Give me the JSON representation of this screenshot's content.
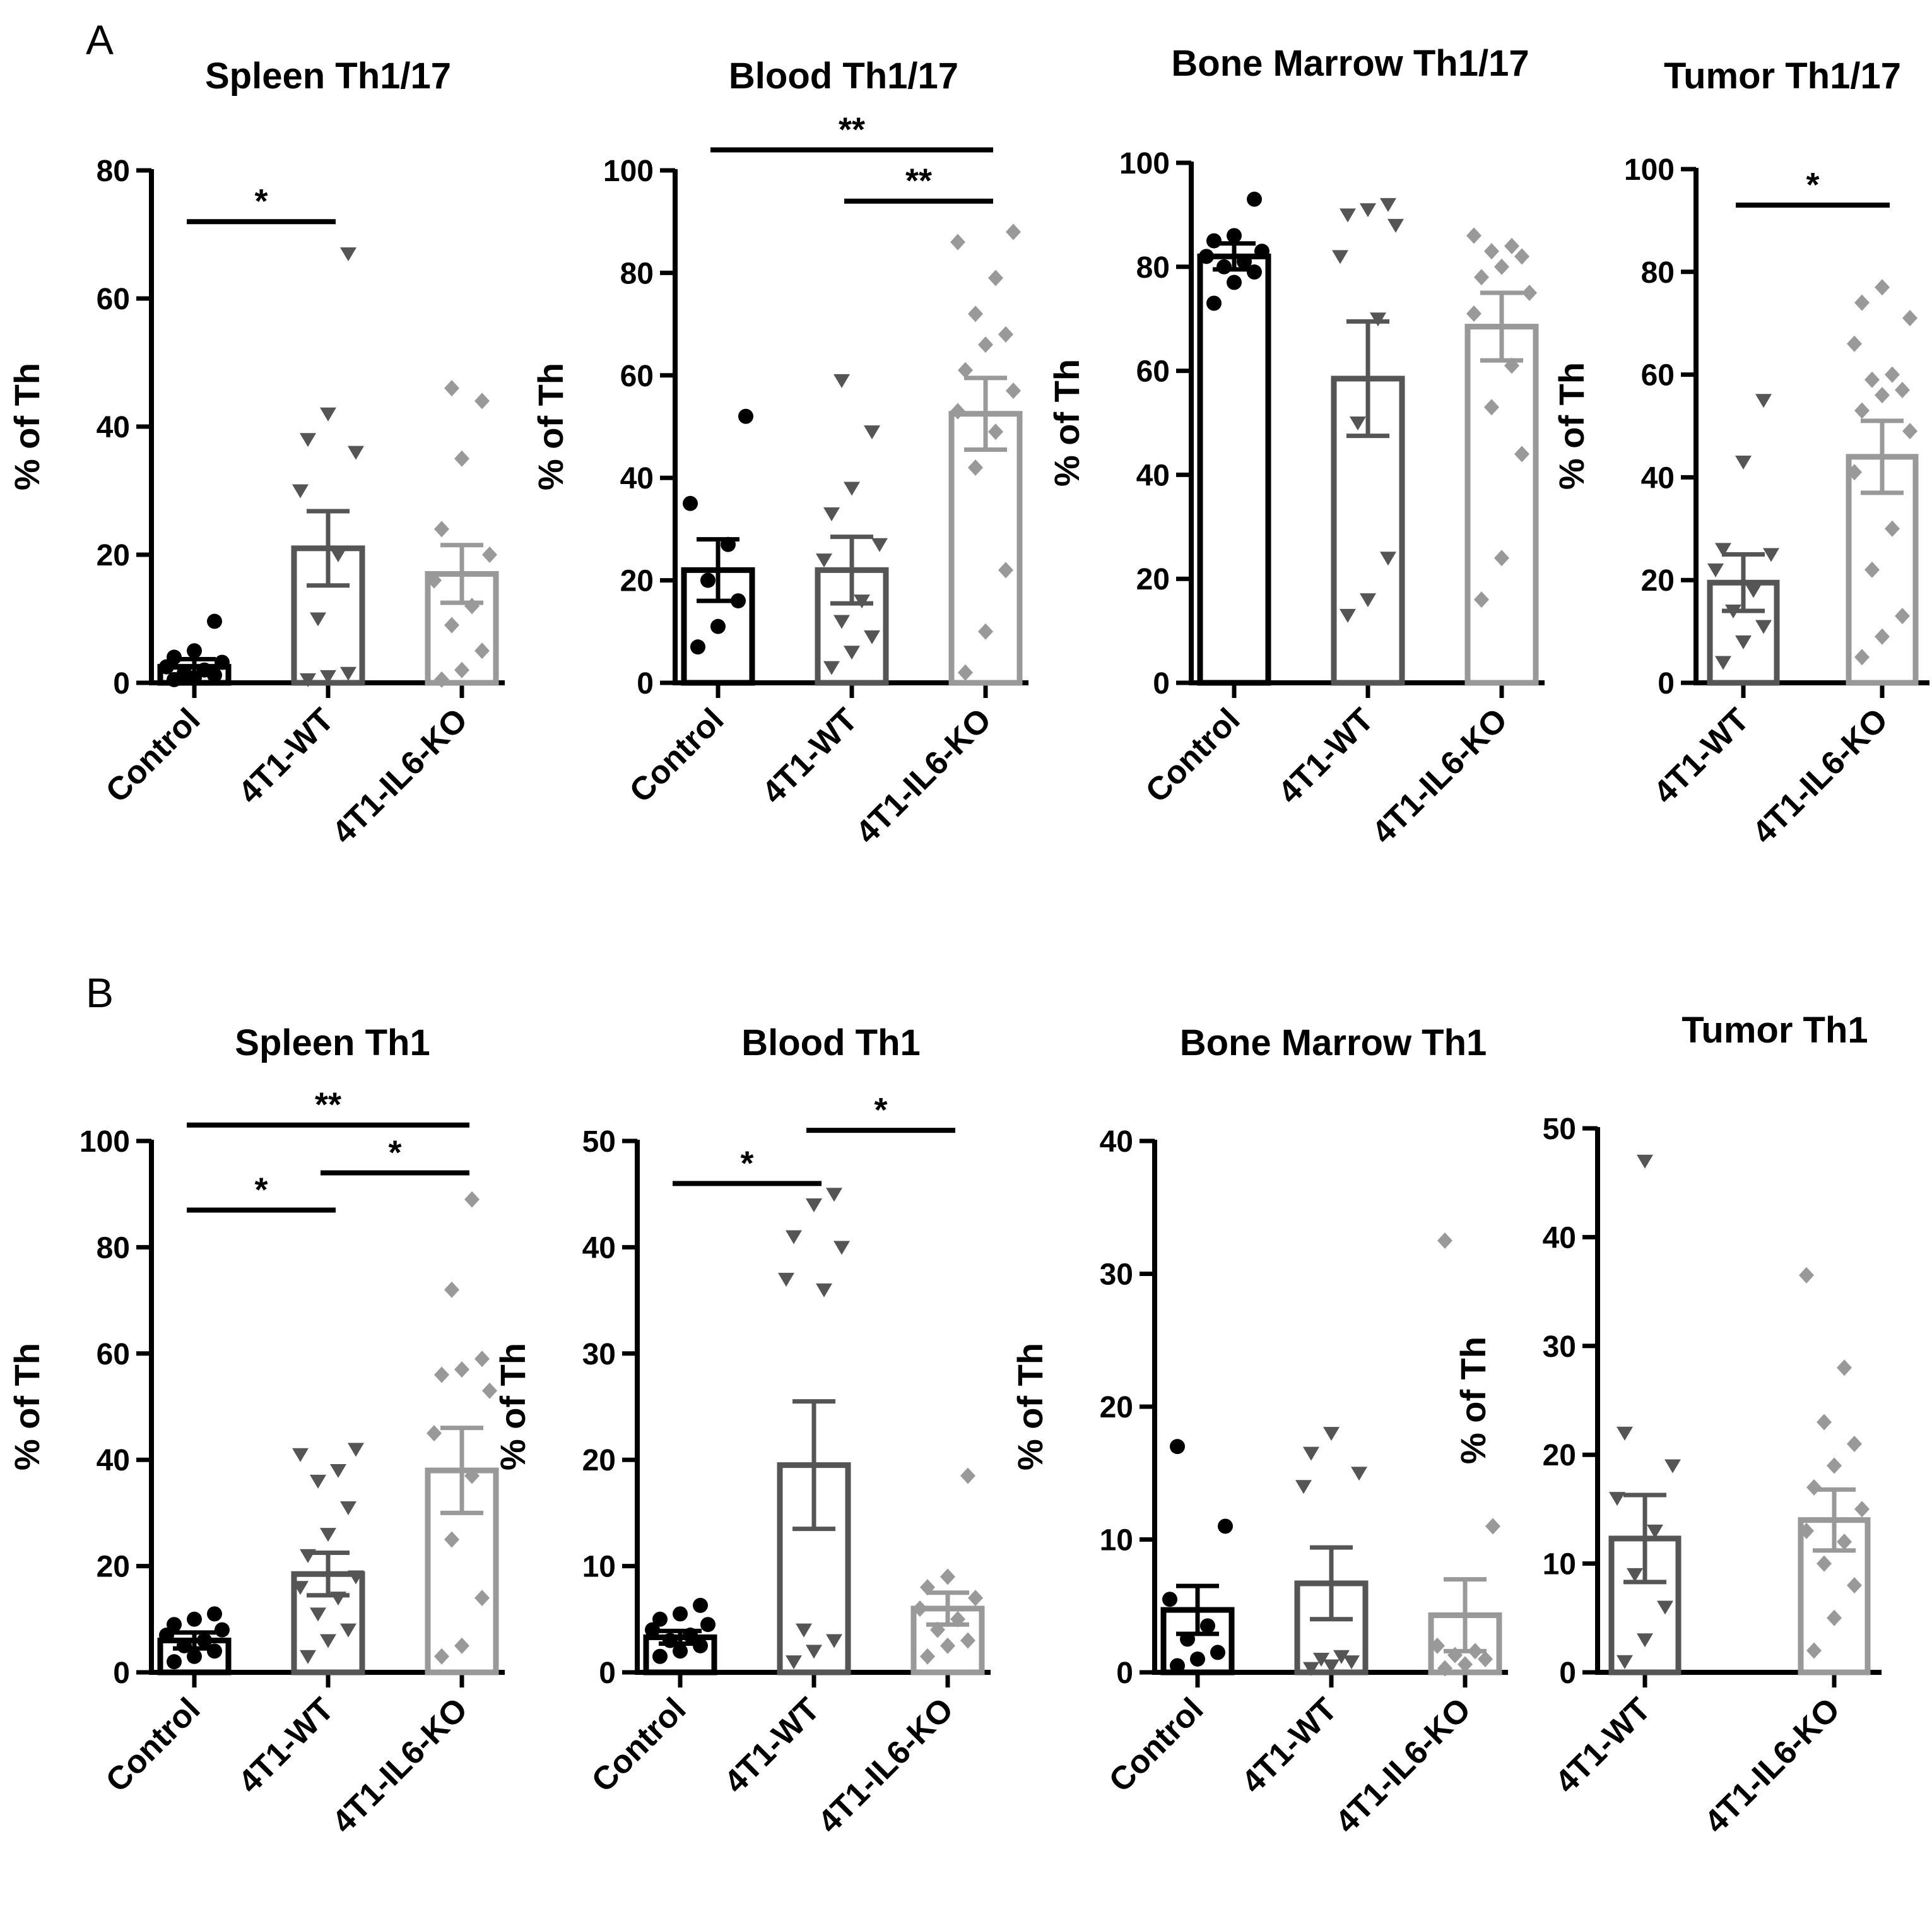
{
  "panels": [
    {
      "letter": "A"
    },
    {
      "letter": "B"
    }
  ],
  "chart_data": [
    {
      "type": "bar",
      "panel": "A",
      "title": "Spleen Th1/17",
      "ylabel": "% of Th",
      "ylim": [
        0,
        80
      ],
      "yticks": [
        0,
        20,
        40,
        60,
        80
      ],
      "categories": [
        "Control",
        "4T1-WT",
        "4T1-IL6-KO"
      ],
      "colors": [
        "#000000",
        "#555555",
        "#999999"
      ],
      "markers": [
        "circle",
        "triangle-down",
        "diamond"
      ],
      "values": [
        2.5,
        21,
        17
      ],
      "errors": [
        1.2,
        5.8,
        4.5
      ],
      "points": [
        [
          0.5,
          0.8,
          1.2,
          1.5,
          2,
          2.5,
          3.2,
          4,
          5,
          9.6
        ],
        [
          0.5,
          1,
          1.5,
          10,
          20,
          30,
          36,
          38,
          42,
          67
        ],
        [
          0.5,
          2,
          5,
          9,
          12,
          16,
          20,
          24,
          35,
          44,
          46
        ]
      ],
      "sig": [
        {
          "from": 0,
          "to": 1,
          "label": "*",
          "y": 72
        }
      ]
    },
    {
      "type": "bar",
      "panel": "A",
      "title": "Blood Th1/17",
      "ylabel": "% of Th",
      "ylim": [
        0,
        100
      ],
      "yticks": [
        0,
        20,
        40,
        60,
        80,
        100
      ],
      "categories": [
        "Control",
        "4T1-WT",
        "4T1-IL6-KO"
      ],
      "colors": [
        "#000000",
        "#555555",
        "#999999"
      ],
      "markers": [
        "circle",
        "triangle-down",
        "diamond"
      ],
      "values": [
        22,
        22,
        52.5
      ],
      "errors": [
        6,
        6.5,
        7
      ],
      "points": [
        [
          7,
          11,
          16,
          20,
          27,
          35,
          52
        ],
        [
          3,
          6,
          9,
          12,
          16,
          24,
          27,
          33,
          38,
          49,
          59
        ],
        [
          2,
          10,
          22,
          42,
          49,
          53,
          57,
          61,
          66,
          68,
          72,
          79,
          86,
          88
        ]
      ],
      "sig": [
        {
          "from": 1,
          "to": 2,
          "label": "**",
          "y": 94
        },
        {
          "from": 0,
          "to": 2,
          "label": "**",
          "y": 104
        }
      ]
    },
    {
      "type": "bar",
      "panel": "A",
      "title": "Bone Marrow Th1/17",
      "ylabel": "% of Th",
      "ylim": [
        0,
        100
      ],
      "yticks": [
        0,
        20,
        40,
        60,
        80,
        100
      ],
      "categories": [
        "Control",
        "4T1-WT",
        "4T1-IL6-KO"
      ],
      "colors": [
        "#000000",
        "#555555",
        "#999999"
      ],
      "markers": [
        "circle",
        "triangle-down",
        "diamond"
      ],
      "values": [
        82,
        58.5,
        68.5
      ],
      "errors": [
        2.5,
        11,
        6.5
      ],
      "points": [
        [
          73,
          77,
          79,
          80,
          81,
          82,
          83,
          85,
          86,
          93
        ],
        [
          13,
          16,
          24,
          50,
          70,
          82,
          88,
          90,
          91,
          92
        ],
        [
          16,
          24,
          44,
          53,
          61,
          71,
          75,
          78,
          80,
          82,
          83,
          84,
          86
        ]
      ],
      "sig": []
    },
    {
      "type": "bar",
      "panel": "A",
      "title": "Tumor Th1/17",
      "ylabel": "% of Th",
      "ylim": [
        0,
        100
      ],
      "yticks": [
        0,
        20,
        40,
        60,
        80,
        100
      ],
      "categories": [
        "4T1-WT",
        "4T1-IL6-KO"
      ],
      "colors": [
        "#555555",
        "#999999"
      ],
      "markers": [
        "triangle-down",
        "diamond"
      ],
      "values": [
        19.5,
        44
      ],
      "errors": [
        5.5,
        7
      ],
      "points": [
        [
          4,
          8,
          11,
          14,
          18,
          22,
          25,
          26,
          43,
          55
        ],
        [
          5,
          9,
          13,
          22,
          30,
          41,
          49,
          53,
          56,
          57,
          59,
          60,
          66,
          71,
          74,
          77
        ]
      ],
      "sig": [
        {
          "from": 0,
          "to": 1,
          "label": "*",
          "y": 93
        }
      ]
    },
    {
      "type": "bar",
      "panel": "B",
      "title": "Spleen Th1",
      "ylabel": "% of Th",
      "ylim": [
        0,
        100
      ],
      "yticks": [
        0,
        20,
        40,
        60,
        80,
        100
      ],
      "categories": [
        "Control",
        "4T1-WT",
        "4T1-IL6-KO"
      ],
      "colors": [
        "#000000",
        "#555555",
        "#999999"
      ],
      "markers": [
        "circle",
        "triangle-down",
        "diamond"
      ],
      "values": [
        6,
        18.5,
        38
      ],
      "errors": [
        1.5,
        4,
        8
      ],
      "points": [
        [
          2,
          3,
          4,
          5,
          6,
          7,
          8,
          9,
          10,
          11
        ],
        [
          3,
          6,
          8,
          11,
          14,
          16,
          18,
          22,
          26,
          31,
          36,
          38,
          41,
          42
        ],
        [
          3,
          5,
          14,
          25,
          37,
          45,
          53,
          56,
          57,
          59,
          72,
          89
        ]
      ],
      "sig": [
        {
          "from": 0,
          "to": 1,
          "label": "*",
          "y": 87
        },
        {
          "from": 1,
          "to": 2,
          "label": "*",
          "y": 94
        },
        {
          "from": 0,
          "to": 2,
          "label": "**",
          "y": 103
        }
      ]
    },
    {
      "type": "bar",
      "panel": "B",
      "title": "Blood Th1",
      "ylabel": "% of Th",
      "ylim": [
        0,
        50
      ],
      "yticks": [
        0,
        10,
        20,
        30,
        40,
        50
      ],
      "categories": [
        "Control",
        "4T1-WT",
        "4T1-IL6-KO"
      ],
      "colors": [
        "#000000",
        "#555555",
        "#999999"
      ],
      "markers": [
        "circle",
        "triangle-down",
        "diamond"
      ],
      "values": [
        3.3,
        19.5,
        6
      ],
      "errors": [
        0.6,
        6,
        1.5
      ],
      "points": [
        [
          1.5,
          2,
          2.5,
          3,
          3.5,
          4,
          4.5,
          5,
          5.5,
          6.3
        ],
        [
          1,
          2,
          3,
          4,
          36,
          37,
          40,
          41,
          44,
          45
        ],
        [
          1.5,
          2.5,
          3,
          4,
          5,
          6,
          7,
          8,
          9,
          18.5
        ]
      ],
      "sig": [
        {
          "from": 0,
          "to": 1,
          "label": "*",
          "y": 46
        },
        {
          "from": 1,
          "to": 2,
          "label": "*",
          "y": 51
        }
      ]
    },
    {
      "type": "bar",
      "panel": "B",
      "title": "Bone Marrow Th1",
      "ylabel": "% of Th",
      "ylim": [
        0,
        40
      ],
      "yticks": [
        0,
        10,
        20,
        30,
        40
      ],
      "categories": [
        "Control",
        "4T1-WT",
        "4T1-IL6-KO"
      ],
      "colors": [
        "#000000",
        "#555555",
        "#999999"
      ],
      "markers": [
        "circle",
        "triangle-down",
        "diamond"
      ],
      "values": [
        4.7,
        6.7,
        4.3
      ],
      "errors": [
        1.8,
        2.7,
        2.7
      ],
      "points": [
        [
          0.5,
          1,
          1.5,
          2.5,
          3.5,
          5.5,
          11,
          17
        ],
        [
          0.3,
          0.5,
          0.8,
          1,
          1.2,
          14,
          15,
          16.5,
          18
        ],
        [
          0.3,
          0.6,
          1,
          1.3,
          1.6,
          2,
          11,
          32.5
        ]
      ],
      "sig": []
    },
    {
      "type": "bar",
      "panel": "B",
      "title": "Tumor Th1",
      "ylabel": "% of Th",
      "ylim": [
        0,
        50
      ],
      "yticks": [
        0,
        10,
        20,
        30,
        40,
        50
      ],
      "categories": [
        "4T1-WT",
        "4T1-IL6-KO"
      ],
      "colors": [
        "#555555",
        "#999999"
      ],
      "markers": [
        "triangle-down",
        "diamond"
      ],
      "values": [
        12.3,
        14
      ],
      "errors": [
        4,
        2.8
      ],
      "points": [
        [
          1,
          3,
          6,
          9,
          13,
          16,
          19,
          22,
          47
        ],
        [
          2,
          5,
          8,
          10,
          12,
          13,
          15,
          17,
          19,
          21,
          23,
          28,
          36.5
        ]
      ],
      "sig": []
    }
  ]
}
